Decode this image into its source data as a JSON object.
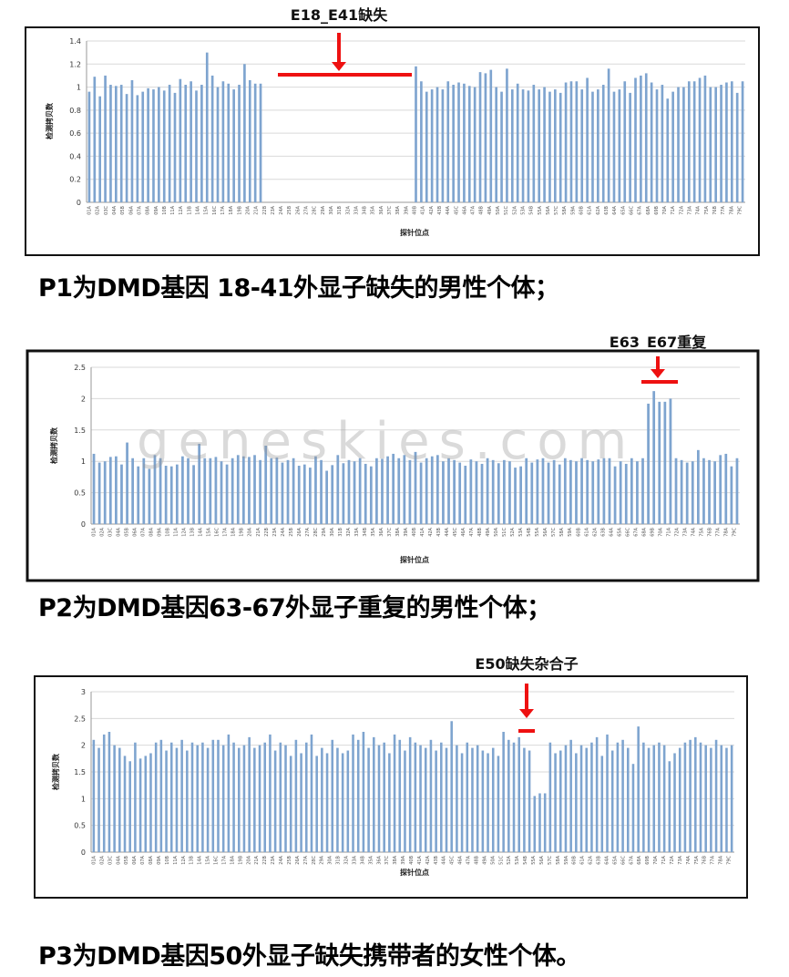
{
  "watermark": "geneskies.com",
  "colors": {
    "bar": "#7ea4cf",
    "annotation": "#ee1111",
    "grid": "#d9d9d9"
  },
  "charts": [
    {
      "caption": "P1为DMD基因 18-41外显子缺失的男性个体；",
      "annotation": "E18_E41缺失",
      "ylabel": "检测拷贝数",
      "xlabel": "探针位点"
    },
    {
      "caption": "P2为DMD基因63-67外显子重复的男性个体；",
      "annotation": "E63_E67重复",
      "ylabel": "检测拷贝数",
      "xlabel": "探针位点"
    },
    {
      "caption": "P3为DMD基因50外显子缺失携带者的女性个体。",
      "annotation": "E50缺失杂合子",
      "ylabel": "检测拷贝数",
      "xlabel": "探针位点"
    }
  ],
  "chart_data": [
    {
      "type": "bar",
      "title": "E18_E41缺失",
      "xlabel": "探针位点",
      "ylabel": "检测拷贝数",
      "ylim": [
        0,
        1.4
      ],
      "yticks": [
        0,
        0.2,
        0.4,
        0.6,
        0.8,
        1,
        1.2,
        1.4
      ],
      "grid": true,
      "annotation": {
        "label": "E18_E41缺失",
        "from_index": 29,
        "to_index": 58
      },
      "values": [
        0.96,
        1.09,
        0.92,
        1.1,
        1.02,
        1.01,
        1.02,
        0.94,
        1.06,
        0.93,
        0.96,
        0.99,
        0.98,
        1.0,
        0.97,
        1.02,
        0.95,
        1.07,
        1.02,
        1.05,
        0.97,
        1.02,
        1.3,
        1.1,
        1.0,
        1.05,
        1.03,
        0.98,
        1.02,
        1.2,
        1.06,
        1.03,
        1.03,
        0,
        0,
        0,
        0,
        0,
        0,
        0,
        0,
        0,
        0,
        0,
        0,
        0,
        0,
        0,
        0,
        0,
        0,
        0,
        0,
        0,
        0,
        0,
        0,
        0,
        0,
        0,
        0,
        1.18,
        1.05,
        0.96,
        0.98,
        1.0,
        0.98,
        1.05,
        1.02,
        1.04,
        1.03,
        1.01,
        1.0,
        1.13,
        1.12,
        1.15,
        1.0,
        0.96,
        1.16,
        0.98,
        1.03,
        0.98,
        0.97,
        1.02,
        0.98,
        1.0,
        0.96,
        0.98,
        0.95,
        1.04,
        1.05,
        1.05,
        0.98,
        1.08,
        0.96,
        0.98,
        1.02,
        1.16,
        0.96,
        0.98,
        1.05,
        0.95,
        1.08,
        1.1,
        1.12,
        1.04,
        0.98,
        1.02,
        0.9,
        0.96,
        1.0,
        1.0,
        1.05,
        1.05,
        1.08,
        1.1,
        1.0,
        1.0,
        1.02,
        1.04,
        1.05,
        0.95,
        1.05
      ],
      "x_tick_labels": [
        "01A",
        "02A",
        "03C",
        "04A",
        "05B",
        "06A",
        "07A",
        "08A",
        "09A",
        "10B",
        "11A",
        "12A",
        "13B",
        "14A",
        "15A",
        "16C",
        "17A",
        "18A",
        "19B",
        "20A",
        "21A",
        "22B",
        "23A",
        "24A",
        "25B",
        "26A",
        "27A",
        "28C",
        "29A",
        "30A",
        "31B",
        "32A",
        "33A",
        "34B",
        "35A",
        "36A",
        "37C",
        "38A",
        "39A",
        "40B",
        "41A",
        "42A",
        "43B",
        "44A",
        "45C",
        "46A",
        "47A",
        "48B",
        "49A",
        "50A",
        "51C",
        "52A",
        "53A",
        "54B",
        "55A",
        "56A",
        "57C",
        "58A",
        "59A",
        "60B",
        "61A",
        "62A",
        "63B",
        "64A",
        "65A",
        "66C",
        "67A",
        "68A",
        "69B",
        "70A",
        "71A",
        "72A",
        "73A",
        "74A",
        "75A",
        "76B",
        "77A",
        "78A",
        "79C"
      ]
    },
    {
      "type": "bar",
      "title": "E63_E67重复",
      "xlabel": "探针位点",
      "ylabel": "检测拷贝数",
      "ylim": [
        0,
        2.5
      ],
      "yticks": [
        0,
        0.5,
        1,
        1.5,
        2,
        2.5
      ],
      "grid": true,
      "annotation": {
        "label": "E63_E67重复",
        "from_index": 100,
        "to_index": 104
      },
      "values": [
        1.12,
        0.98,
        1.0,
        1.07,
        1.08,
        0.95,
        1.3,
        1.05,
        0.92,
        1.05,
        0.88,
        1.1,
        1.05,
        0.93,
        0.92,
        0.95,
        1.08,
        1.05,
        0.94,
        1.28,
        1.05,
        1.05,
        1.07,
        1.0,
        0.95,
        1.05,
        1.1,
        1.08,
        1.07,
        1.1,
        1.02,
        1.25,
        1.05,
        1.06,
        0.98,
        1.02,
        1.05,
        0.93,
        0.95,
        0.9,
        1.08,
        1.02,
        0.85,
        0.94,
        1.1,
        0.97,
        1.02,
        1.0,
        1.05,
        0.96,
        0.92,
        1.05,
        1.04,
        1.08,
        1.12,
        1.05,
        1.1,
        1.02,
        1.15,
        0.98,
        1.05,
        1.08,
        1.1,
        1.0,
        1.05,
        1.02,
        0.98,
        0.93,
        1.03,
        1.0,
        0.96,
        1.05,
        1.02,
        0.97,
        1.02,
        1.0,
        0.9,
        0.92,
        1.05,
        0.98,
        1.03,
        1.05,
        0.98,
        1.02,
        0.95,
        1.05,
        1.02,
        1.0,
        1.05,
        1.02,
        1.0,
        1.03,
        1.05,
        1.05,
        0.92,
        1.0,
        0.96,
        1.05,
        1.0,
        1.05,
        1.92,
        2.12,
        1.95,
        1.95,
        2.0,
        1.05,
        1.02,
        0.98,
        1.0,
        1.18,
        1.05,
        1.02,
        1.0,
        1.1,
        1.12,
        0.92,
        1.05
      ],
      "x_tick_labels": [
        "01A",
        "02A",
        "03C",
        "04A",
        "05B",
        "06A",
        "07A",
        "08A",
        "09A",
        "10B",
        "11A",
        "12A",
        "13B",
        "14A",
        "15A",
        "16C",
        "17A",
        "18A",
        "19B",
        "20A",
        "21A",
        "22B",
        "23A",
        "24A",
        "25B",
        "26A",
        "27A",
        "28C",
        "29A",
        "30A",
        "31B",
        "32A",
        "33A",
        "34B",
        "35A",
        "36A",
        "37C",
        "38A",
        "39A",
        "40B",
        "41A",
        "42A",
        "43B",
        "44A",
        "45C",
        "46A",
        "47A",
        "48B",
        "49A",
        "50A",
        "51C",
        "52A",
        "53A",
        "54B",
        "55A",
        "56A",
        "57C",
        "58A",
        "59A",
        "60B",
        "61A",
        "62A",
        "63B",
        "64A",
        "65A",
        "66C",
        "67A",
        "68A",
        "69B",
        "70A",
        "71A",
        "72A",
        "73A",
        "74A",
        "75A",
        "76B",
        "77A",
        "78A",
        "79C"
      ]
    },
    {
      "type": "bar",
      "title": "E50缺失杂合子",
      "xlabel": "探针位点",
      "ylabel": "检测拷贝数",
      "ylim": [
        0,
        3
      ],
      "yticks": [
        0,
        0.5,
        1,
        1.5,
        2,
        2.5,
        3
      ],
      "grid": true,
      "annotation": {
        "label": "E50缺失杂合子",
        "from_index": 84,
        "to_index": 86
      },
      "values": [
        2.1,
        1.95,
        2.2,
        2.25,
        2.0,
        1.95,
        1.8,
        1.7,
        2.05,
        1.75,
        1.8,
        1.85,
        2.05,
        2.1,
        1.9,
        2.05,
        1.95,
        2.1,
        1.9,
        2.05,
        2.0,
        2.05,
        1.95,
        2.1,
        2.1,
        2.0,
        2.2,
        2.05,
        1.95,
        2.0,
        2.15,
        1.95,
        2.0,
        2.05,
        2.2,
        1.9,
        2.05,
        2.0,
        1.8,
        2.1,
        1.85,
        2.05,
        2.2,
        1.8,
        1.95,
        1.85,
        2.1,
        1.95,
        1.85,
        1.9,
        2.2,
        2.1,
        2.25,
        1.95,
        2.15,
        2.0,
        2.05,
        1.85,
        2.2,
        2.1,
        1.9,
        2.15,
        2.05,
        2.0,
        1.95,
        2.1,
        1.9,
        2.05,
        1.95,
        2.45,
        2.0,
        1.85,
        2.05,
        1.95,
        2.0,
        1.9,
        1.85,
        1.95,
        1.8,
        2.25,
        2.1,
        2.05,
        2.15,
        1.95,
        1.9,
        1.05,
        1.1,
        1.1,
        2.05,
        1.85,
        1.9,
        2.0,
        2.1,
        1.85,
        2.0,
        1.95,
        2.05,
        2.15,
        1.8,
        2.2,
        1.9,
        2.05,
        2.1,
        1.95,
        1.65,
        2.35,
        2.05,
        1.95,
        2.0,
        2.05,
        2.0,
        1.7,
        1.85,
        1.95,
        2.05,
        2.1,
        2.15,
        2.05,
        2.0,
        1.95,
        2.1,
        2.0,
        1.95,
        2.0
      ],
      "x_tick_labels": [
        "01A",
        "02A",
        "03C",
        "04A",
        "05B",
        "06A",
        "07A",
        "08A",
        "09A",
        "10B",
        "11A",
        "12A",
        "13B",
        "14A",
        "15A",
        "16C",
        "17A",
        "18A",
        "19B",
        "20A",
        "21A",
        "22B",
        "23A",
        "24A",
        "25B",
        "26A",
        "27A",
        "28C",
        "29A",
        "30A",
        "31B",
        "32A",
        "33A",
        "34B",
        "35A",
        "36A",
        "37C",
        "38A",
        "39A",
        "40B",
        "41A",
        "42A",
        "43B",
        "44A",
        "45C",
        "46A",
        "47A",
        "48B",
        "49A",
        "50A",
        "51C",
        "52A",
        "53A",
        "54B",
        "55A",
        "56A",
        "57C",
        "58A",
        "59A",
        "60B",
        "61A",
        "62A",
        "63B",
        "64A",
        "65A",
        "66C",
        "67A",
        "68A",
        "69B",
        "70A",
        "71A",
        "72A",
        "73A",
        "74A",
        "75A",
        "76B",
        "77A",
        "78A",
        "79C"
      ]
    }
  ]
}
